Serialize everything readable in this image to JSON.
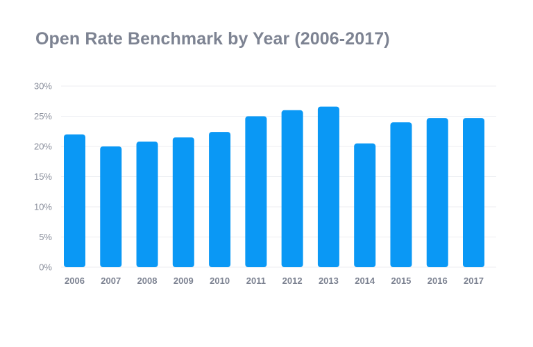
{
  "chart_data": {
    "type": "bar",
    "title": "Open Rate Benchmark by Year (2006-2017)",
    "xlabel": "",
    "ylabel": "",
    "categories": [
      "2006",
      "2007",
      "2008",
      "2009",
      "2010",
      "2011",
      "2012",
      "2013",
      "2014",
      "2015",
      "2016",
      "2017"
    ],
    "values": [
      22,
      20,
      20.8,
      21.5,
      22.4,
      25,
      26,
      26.6,
      20.5,
      24,
      24.7,
      24.7
    ],
    "ylim": [
      0,
      30
    ],
    "yticks": [
      0,
      5,
      10,
      15,
      20,
      25,
      30
    ],
    "ytick_labels": [
      "0%",
      "5%",
      "10%",
      "15%",
      "20%",
      "25%",
      "30%"
    ],
    "grid": true,
    "legend": "none",
    "colors": {
      "bar": "#0a98f5",
      "grid": "#eceef2",
      "title": "#7d8392",
      "tick": "#8a8f9c"
    }
  }
}
